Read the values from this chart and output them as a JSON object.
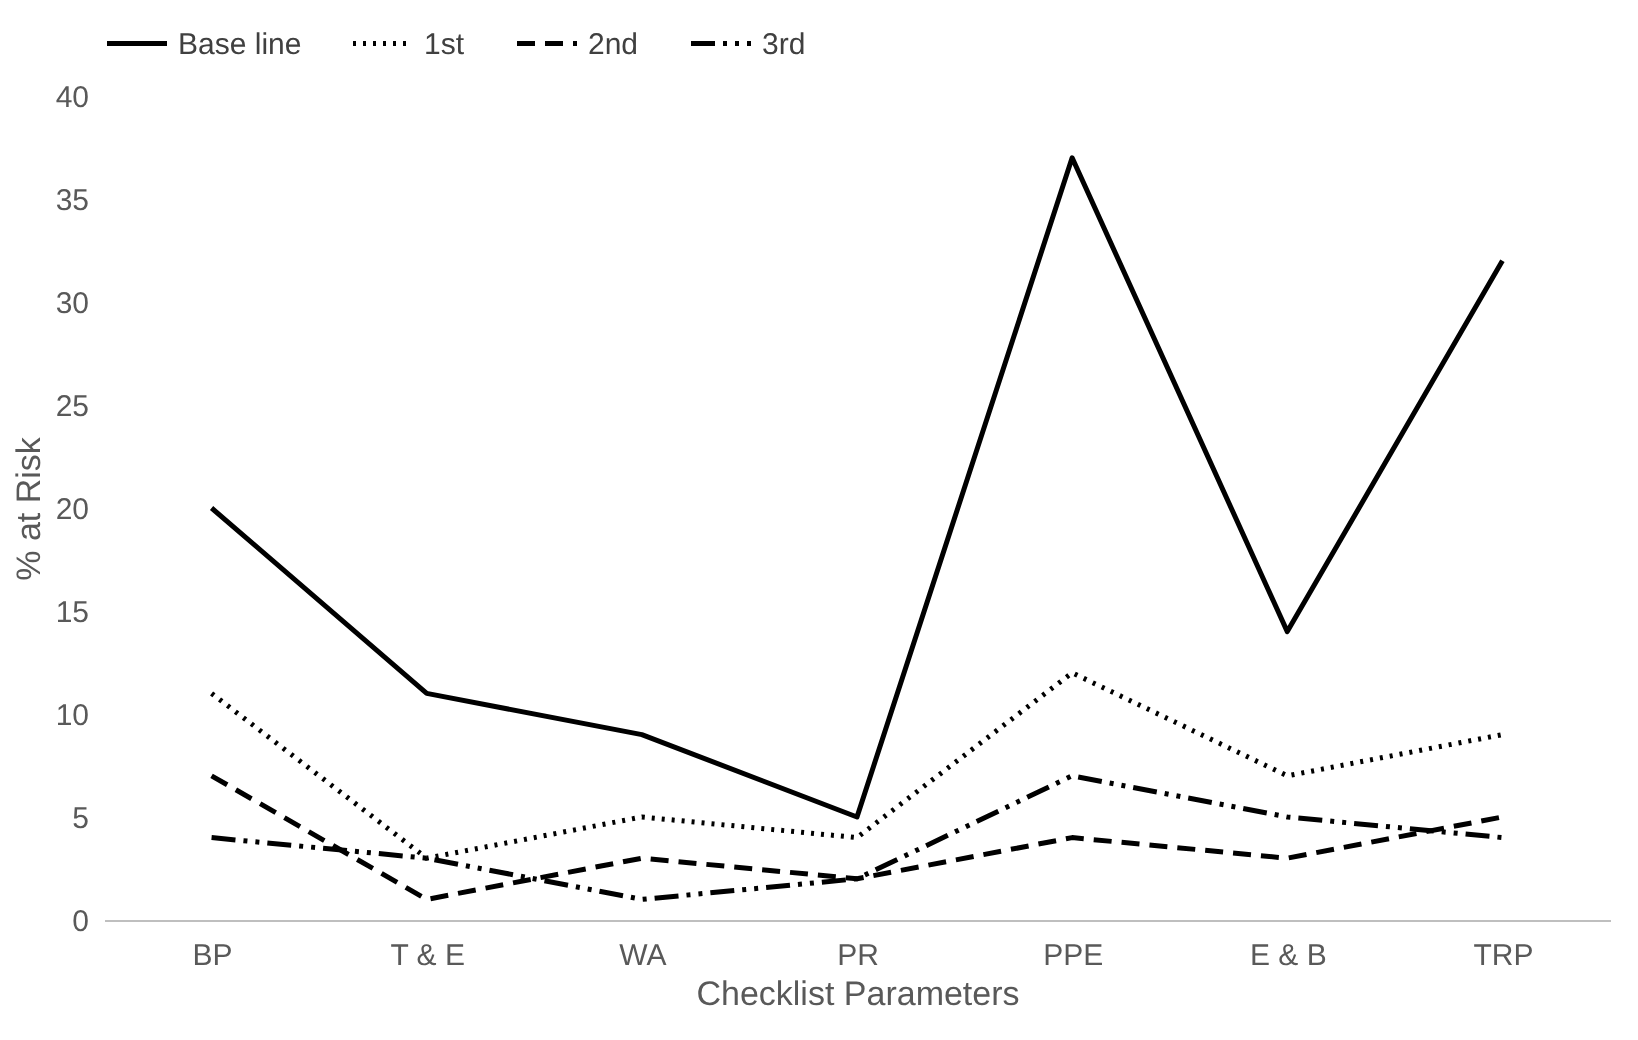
{
  "chart_data": {
    "type": "line",
    "xlabel": "Checklist Parameters",
    "ylabel": "% at Risk",
    "categories": [
      "BP",
      "T & E",
      "WA",
      "PR",
      "PPE",
      "E & B",
      "TRP"
    ],
    "ylim": [
      0,
      40
    ],
    "yticks": [
      0,
      5,
      10,
      15,
      20,
      25,
      30,
      35,
      40
    ],
    "grid": false,
    "legend": "top",
    "marker": "none",
    "series": [
      {
        "name": "Base line",
        "color": "#000000",
        "line_style": "solid",
        "values": [
          20,
          11,
          9,
          5,
          37,
          14,
          32
        ]
      },
      {
        "name": "1st",
        "color": "#000000",
        "line_style": "dotted",
        "values": [
          11,
          3,
          5,
          4,
          12,
          7,
          9
        ]
      },
      {
        "name": "2nd",
        "color": "#000000",
        "line_style": "dashed",
        "values": [
          7,
          1,
          3,
          2,
          4,
          3,
          5
        ]
      },
      {
        "name": "3rd",
        "color": "#000000",
        "line_style": "dashdot",
        "values": [
          4,
          3,
          1,
          2,
          7,
          5,
          4
        ]
      }
    ]
  }
}
